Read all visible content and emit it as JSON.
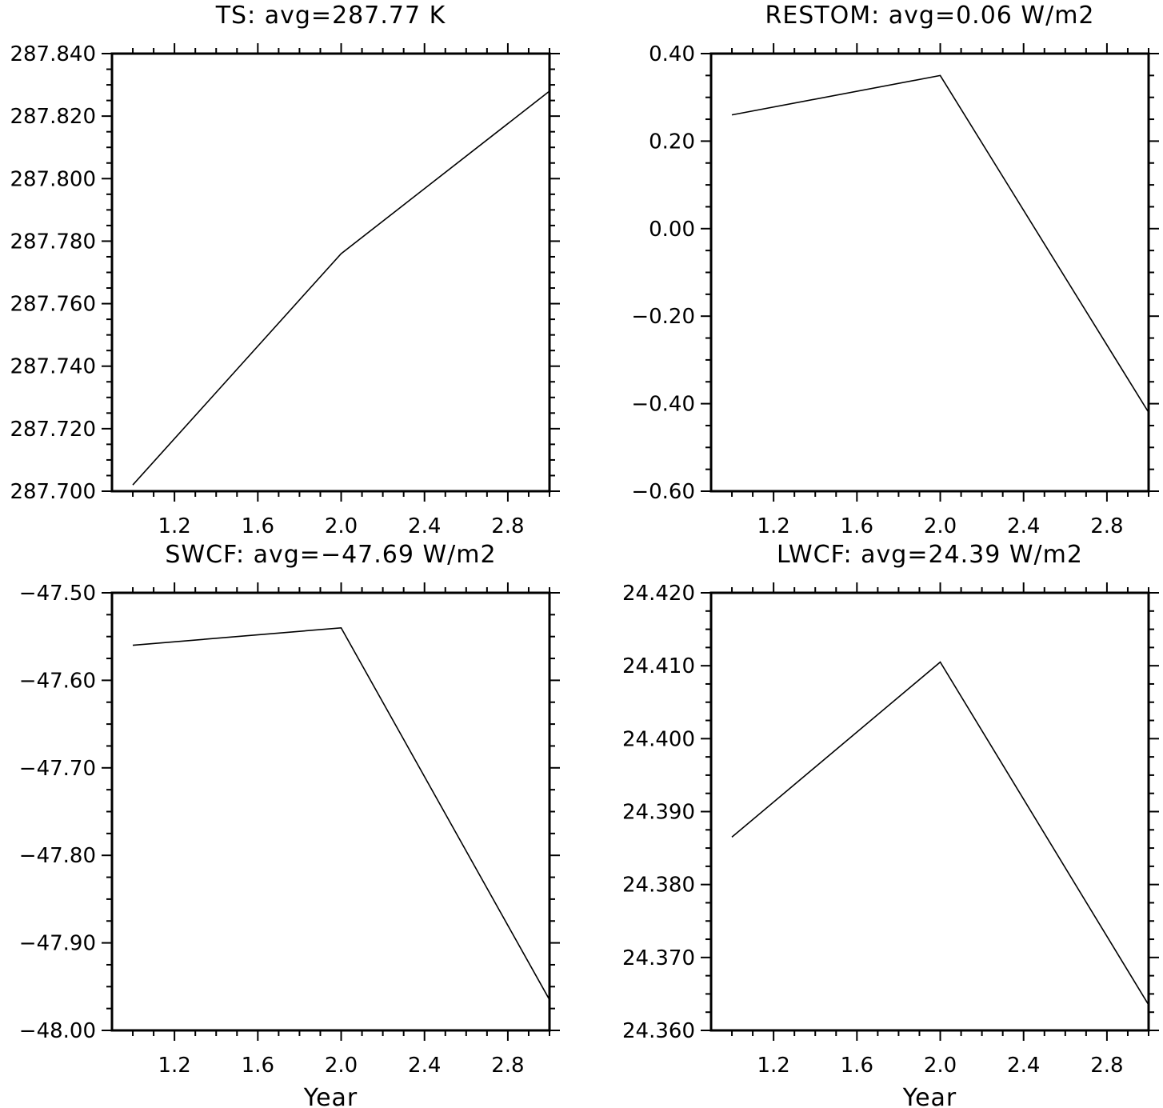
{
  "chart_data": [
    {
      "type": "line",
      "title": "TS: avg=287.77 K",
      "xlabel": "",
      "ylabel": "",
      "x": [
        1,
        2,
        3
      ],
      "series": [
        {
          "values": [
            287.702,
            287.776,
            287.828
          ]
        }
      ],
      "xlim": [
        0.9,
        3.0
      ],
      "ylim": [
        287.7,
        287.84
      ],
      "xticks": [
        "1.2",
        "1.6",
        "2.0",
        "2.4",
        "2.8"
      ],
      "yticks": [
        "287.700",
        "287.720",
        "287.740",
        "287.760",
        "287.780",
        "287.800",
        "287.820",
        "287.840"
      ],
      "grid": false
    },
    {
      "type": "line",
      "title": "RESTOM: avg=0.06 W/m2",
      "xlabel": "",
      "ylabel": "",
      "x": [
        1,
        2,
        3
      ],
      "series": [
        {
          "values": [
            0.26,
            0.35,
            -0.42
          ]
        }
      ],
      "xlim": [
        0.9,
        3.0
      ],
      "ylim": [
        -0.6,
        0.4
      ],
      "xticks": [
        "1.2",
        "1.6",
        "2.0",
        "2.4",
        "2.8"
      ],
      "yticks": [
        "−0.60",
        "−0.40",
        "−0.20",
        "0.00",
        "0.20",
        "0.40"
      ],
      "grid": false
    },
    {
      "type": "line",
      "title": "SWCF: avg=−47.69 W/m2",
      "xlabel": "Year",
      "ylabel": "",
      "x": [
        1,
        2,
        3
      ],
      "series": [
        {
          "values": [
            -47.56,
            -47.54,
            -47.965
          ]
        }
      ],
      "xlim": [
        0.9,
        3.0
      ],
      "ylim": [
        -48.0,
        -47.5
      ],
      "xticks": [
        "1.2",
        "1.6",
        "2.0",
        "2.4",
        "2.8"
      ],
      "yticks": [
        "−48.00",
        "−47.90",
        "−47.80",
        "−47.70",
        "−47.60",
        "−47.50"
      ],
      "grid": false
    },
    {
      "type": "line",
      "title": "LWCF: avg=24.39 W/m2",
      "xlabel": "Year",
      "ylabel": "",
      "x": [
        1,
        2,
        3
      ],
      "series": [
        {
          "values": [
            24.3865,
            24.4105,
            24.3635
          ]
        }
      ],
      "xlim": [
        0.9,
        3.0
      ],
      "ylim": [
        24.36,
        24.42
      ],
      "xticks": [
        "1.2",
        "1.6",
        "2.0",
        "2.4",
        "2.8"
      ],
      "yticks": [
        "24.360",
        "24.370",
        "24.380",
        "24.390",
        "24.400",
        "24.410",
        "24.420"
      ],
      "grid": false
    }
  ]
}
